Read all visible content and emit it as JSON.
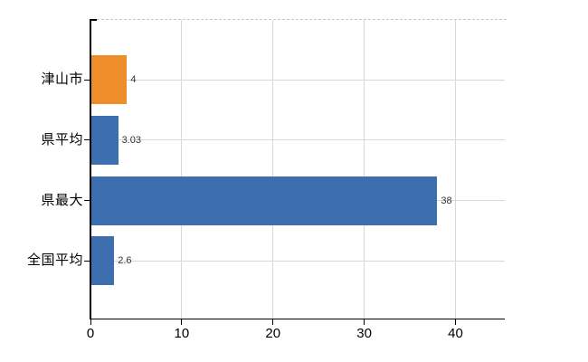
{
  "chart_data": {
    "type": "bar",
    "orientation": "horizontal",
    "title": "",
    "xlabel": "",
    "ylabel": "",
    "categories": [
      "津山市",
      "県平均",
      "県最大",
      "全国平均"
    ],
    "values": [
      4,
      3.03,
      38,
      2.6
    ],
    "value_labels": [
      "4",
      "3.03",
      "38",
      "2.6"
    ],
    "bar_colors": [
      "#ef8d2b",
      "#3d6eb0",
      "#3d6eb0",
      "#3d6eb0"
    ],
    "x_ticks": [
      0,
      10,
      20,
      30,
      40
    ],
    "x_tick_labels": [
      "0",
      "10",
      "20",
      "30",
      "40"
    ],
    "xlim": [
      0,
      45.4
    ],
    "grid": true,
    "legend": false
  },
  "colors": {
    "background": "#ffffff",
    "axis": "#000000",
    "gridline": "#d8d8d8",
    "top_border": "#c8c8c8",
    "category_text": "#000000",
    "tick_text": "#000000",
    "value_text": "#333333",
    "bar_orange": "#ef8d2b",
    "bar_blue": "#3d6eb0"
  }
}
